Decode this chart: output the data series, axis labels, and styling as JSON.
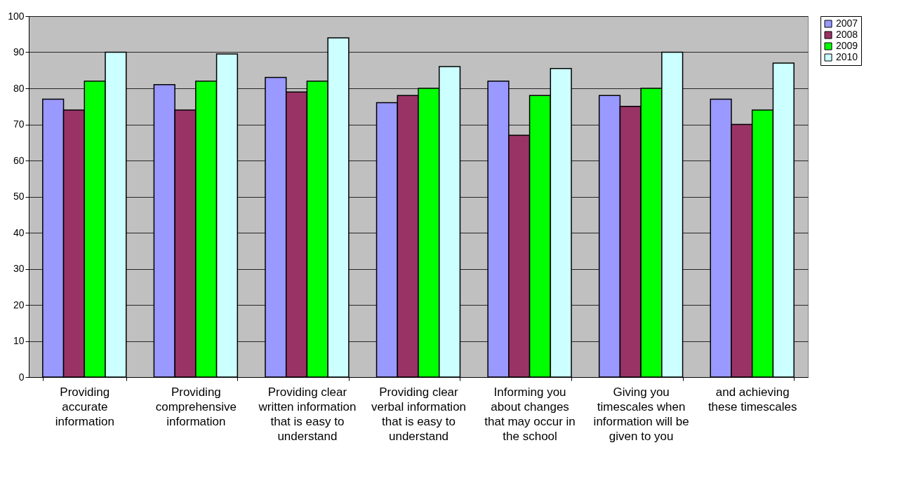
{
  "chart_data": {
    "type": "bar",
    "categories": [
      "Providing accurate information",
      "Providing comprehensive information",
      "Providing clear written information that is easy to understand",
      "Providing clear verbal information that is easy to understand",
      "Informing you about changes that may occur in the school",
      "Giving you timescales when information will be given to you",
      "and achieving these timescales"
    ],
    "series": [
      {
        "name": "2007",
        "color": "#9999ff",
        "values": [
          77,
          81,
          83,
          76,
          82,
          78,
          77
        ]
      },
      {
        "name": "2008",
        "color": "#993366",
        "values": [
          74,
          74,
          79,
          78,
          67,
          75,
          70
        ]
      },
      {
        "name": "2009",
        "color": "#00ff00",
        "values": [
          82,
          82,
          82,
          80,
          78,
          80,
          74
        ]
      },
      {
        "name": "2010",
        "color": "#ccffff",
        "values": [
          90,
          89.5,
          94,
          86,
          85.5,
          90,
          87
        ]
      }
    ],
    "ylim": [
      0,
      100
    ],
    "yticks": [
      0,
      10,
      20,
      30,
      40,
      50,
      60,
      70,
      80,
      90,
      100
    ],
    "grid": "y",
    "legend": "right"
  }
}
